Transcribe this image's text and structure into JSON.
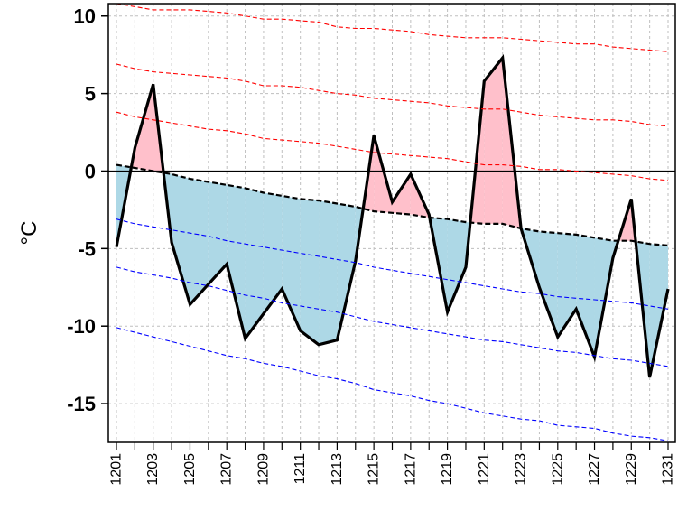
{
  "chart_data": {
    "type": "line",
    "title": "",
    "xlabel": "",
    "ylabel": "°C",
    "ylim": [
      -17.5,
      10.8
    ],
    "grid": true,
    "x_tick_labels": [
      "1201",
      "1203",
      "1205",
      "1207",
      "1209",
      "1211",
      "1213",
      "1215",
      "1217",
      "1219",
      "1221",
      "1223",
      "1225",
      "1227",
      "1229",
      "1231"
    ],
    "y_ticks": [
      10,
      5,
      0,
      -5,
      -10,
      -15
    ],
    "x": [
      "1201",
      "1202",
      "1203",
      "1204",
      "1205",
      "1206",
      "1207",
      "1208",
      "1209",
      "1210",
      "1211",
      "1212",
      "1213",
      "1214",
      "1215",
      "1216",
      "1217",
      "1218",
      "1219",
      "1220",
      "1221",
      "1222",
      "1223",
      "1224",
      "1225",
      "1226",
      "1227",
      "1228",
      "1229",
      "1230",
      "1231"
    ],
    "series": [
      {
        "role": "observed",
        "color": "#000000",
        "values": [
          -4.9,
          1.5,
          5.6,
          -4.6,
          -8.6,
          -7.3,
          -6.0,
          -10.8,
          -9.2,
          -7.6,
          -10.3,
          -11.2,
          -10.9,
          -5.8,
          2.3,
          -2.0,
          -0.2,
          -2.8,
          -9.1,
          -6.2,
          5.8,
          7.3,
          -3.7,
          -7.5,
          -10.7,
          -8.9,
          -12.0,
          -5.6,
          -1.8,
          -13.3,
          -7.6
        ]
      },
      {
        "role": "normal",
        "color": "#000000",
        "style": "dashed",
        "values": [
          0.4,
          0.2,
          0.0,
          -0.2,
          -0.5,
          -0.7,
          -0.9,
          -1.1,
          -1.4,
          -1.6,
          -1.8,
          -1.9,
          -2.1,
          -2.3,
          -2.6,
          -2.7,
          -2.8,
          -3.0,
          -3.1,
          -3.3,
          -3.4,
          -3.4,
          -3.7,
          -3.9,
          -4.0,
          -4.1,
          -4.3,
          -4.5,
          -4.5,
          -4.7,
          -4.8
        ]
      },
      {
        "role": "upper-1",
        "color": "#ff0000",
        "style": "dashed",
        "values": [
          3.8,
          3.5,
          3.3,
          3.1,
          2.9,
          2.7,
          2.6,
          2.4,
          2.1,
          2.0,
          1.9,
          1.8,
          1.6,
          1.4,
          1.2,
          1.1,
          1.0,
          0.9,
          0.8,
          0.6,
          0.4,
          0.4,
          0.3,
          0.1,
          0.1,
          0.0,
          -0.1,
          -0.2,
          -0.3,
          -0.5,
          -0.6
        ]
      },
      {
        "role": "upper-2",
        "color": "#ff0000",
        "style": "dashed",
        "values": [
          6.9,
          6.6,
          6.4,
          6.3,
          6.2,
          6.1,
          6.0,
          5.8,
          5.5,
          5.5,
          5.4,
          5.2,
          5.0,
          4.9,
          4.7,
          4.6,
          4.5,
          4.4,
          4.2,
          4.1,
          4.0,
          4.0,
          3.8,
          3.6,
          3.5,
          3.4,
          3.3,
          3.3,
          3.2,
          3.0,
          2.9
        ]
      },
      {
        "role": "upper-3",
        "color": "#ff0000",
        "style": "dashed",
        "values": [
          10.8,
          10.6,
          10.4,
          10.4,
          10.4,
          10.3,
          10.2,
          10.0,
          9.8,
          9.8,
          9.7,
          9.6,
          9.3,
          9.2,
          9.2,
          9.1,
          9.0,
          8.8,
          8.7,
          8.6,
          8.6,
          8.6,
          8.5,
          8.4,
          8.3,
          8.2,
          8.2,
          8.0,
          7.9,
          7.8,
          7.7
        ]
      },
      {
        "role": "lower-1",
        "color": "#0000ff",
        "style": "dashed",
        "values": [
          -3.1,
          -3.4,
          -3.6,
          -3.8,
          -4.0,
          -4.2,
          -4.5,
          -4.7,
          -4.9,
          -5.1,
          -5.3,
          -5.5,
          -5.7,
          -5.9,
          -6.2,
          -6.4,
          -6.6,
          -6.8,
          -7.0,
          -7.2,
          -7.4,
          -7.6,
          -7.8,
          -7.9,
          -8.1,
          -8.2,
          -8.3,
          -8.4,
          -8.5,
          -8.7,
          -8.9
        ]
      },
      {
        "role": "lower-2",
        "color": "#0000ff",
        "style": "dashed",
        "values": [
          -6.2,
          -6.5,
          -6.7,
          -6.9,
          -7.2,
          -7.4,
          -7.7,
          -8.0,
          -8.2,
          -8.5,
          -8.7,
          -8.9,
          -9.1,
          -9.4,
          -9.7,
          -9.9,
          -10.1,
          -10.3,
          -10.5,
          -10.7,
          -10.9,
          -11.0,
          -11.2,
          -11.4,
          -11.6,
          -11.7,
          -11.9,
          -12.1,
          -12.2,
          -12.4,
          -12.6
        ]
      },
      {
        "role": "lower-3",
        "color": "#0000ff",
        "style": "dashed",
        "values": [
          -10.1,
          -10.4,
          -10.7,
          -11.0,
          -11.3,
          -11.6,
          -11.9,
          -12.1,
          -12.4,
          -12.6,
          -12.9,
          -13.2,
          -13.4,
          -13.7,
          -14.1,
          -14.3,
          -14.5,
          -14.8,
          -15.0,
          -15.3,
          -15.6,
          -15.8,
          -16.0,
          -16.1,
          -16.4,
          -16.5,
          -16.6,
          -16.9,
          -17.1,
          -17.2,
          -17.4
        ]
      }
    ],
    "fill_above_normal_color": "#ffc0cb",
    "fill_below_normal_color": "#add8e6",
    "zero_line_color": "#000000",
    "grid_color": "#bfbfbf"
  }
}
